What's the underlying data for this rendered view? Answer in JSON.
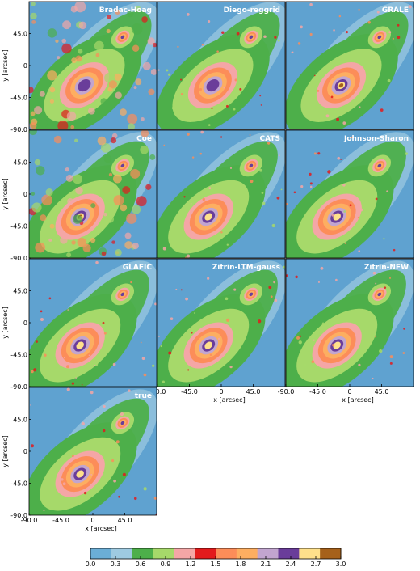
{
  "chart_data": {
    "type": "heatmap",
    "colormap": [
      "#6baed6",
      "#9ecae1",
      "#4daf4a",
      "#a6d96a",
      "#f4a6a6",
      "#e31a1c",
      "#fc8d59",
      "#fdae61",
      "#c2a5cf",
      "#6a3d9a",
      "#fee08b",
      "#a6611a"
    ],
    "panels": [
      {
        "name": "Bradac-Hoag",
        "x_axis": false,
        "y_axis": true,
        "bcg": [
          -12,
          -28
        ],
        "sub": [
          42,
          40
        ],
        "peak": 2.6,
        "noisy": true
      },
      {
        "name": "Diego-reggrid",
        "x_axis": false,
        "y_axis": false,
        "bcg": [
          -12,
          -28
        ],
        "sub": [
          42,
          40
        ],
        "peak": 2.4,
        "noisy": false
      },
      {
        "name": "GRALE",
        "x_axis": false,
        "y_axis": false,
        "bcg": [
          -12,
          -28
        ],
        "sub": [
          42,
          40
        ],
        "peak": 3.0,
        "noisy": false
      },
      {
        "name": "Coe",
        "x_axis": false,
        "y_axis": true,
        "bcg": [
          -18,
          -32
        ],
        "sub": [
          42,
          40
        ],
        "peak": 3.0,
        "noisy": true
      },
      {
        "name": "CATS",
        "x_axis": false,
        "y_axis": false,
        "bcg": [
          -18,
          -32
        ],
        "sub": [
          42,
          40
        ],
        "peak": 2.8,
        "noisy": false
      },
      {
        "name": "Johnson-Sharon",
        "x_axis": false,
        "y_axis": false,
        "bcg": [
          -18,
          -32
        ],
        "sub": [
          42,
          40
        ],
        "peak": 2.8,
        "noisy": false
      },
      {
        "name": "GLAFIC",
        "x_axis": false,
        "y_axis": true,
        "bcg": [
          -18,
          -32
        ],
        "sub": [
          42,
          40
        ],
        "peak": 2.8,
        "noisy": false
      },
      {
        "name": "Zitrin-LTM-gauss",
        "x_axis": true,
        "y_axis": false,
        "bcg": [
          -18,
          -32
        ],
        "sub": [
          42,
          40
        ],
        "peak": 2.8,
        "noisy": false
      },
      {
        "name": "Zitrin-NFW",
        "x_axis": true,
        "y_axis": false,
        "bcg": [
          -18,
          -32
        ],
        "sub": [
          42,
          40
        ],
        "peak": 2.8,
        "noisy": false
      },
      {
        "name": "true",
        "x_axis": true,
        "y_axis": true,
        "bcg": [
          -18,
          -32
        ],
        "sub": [
          42,
          40
        ],
        "peak": 2.8,
        "noisy": false
      }
    ],
    "x_ticks": [
      "-90.0",
      "-45.0",
      "0",
      "45.0"
    ],
    "y_ticks": [
      "45.0",
      "0",
      "-45.0",
      "-90.0"
    ],
    "xlabel": "x [arcsec]",
    "ylabel": "y [arcsec]",
    "xlim": [
      -90,
      90
    ],
    "ylim": [
      -90,
      90
    ],
    "colorbar": {
      "ticks": [
        "0.0",
        "0.3",
        "0.6",
        "0.9",
        "1.2",
        "1.5",
        "1.8",
        "2.1",
        "2.4",
        "2.7",
        "3.0"
      ],
      "range": [
        0,
        3.0
      ]
    }
  }
}
